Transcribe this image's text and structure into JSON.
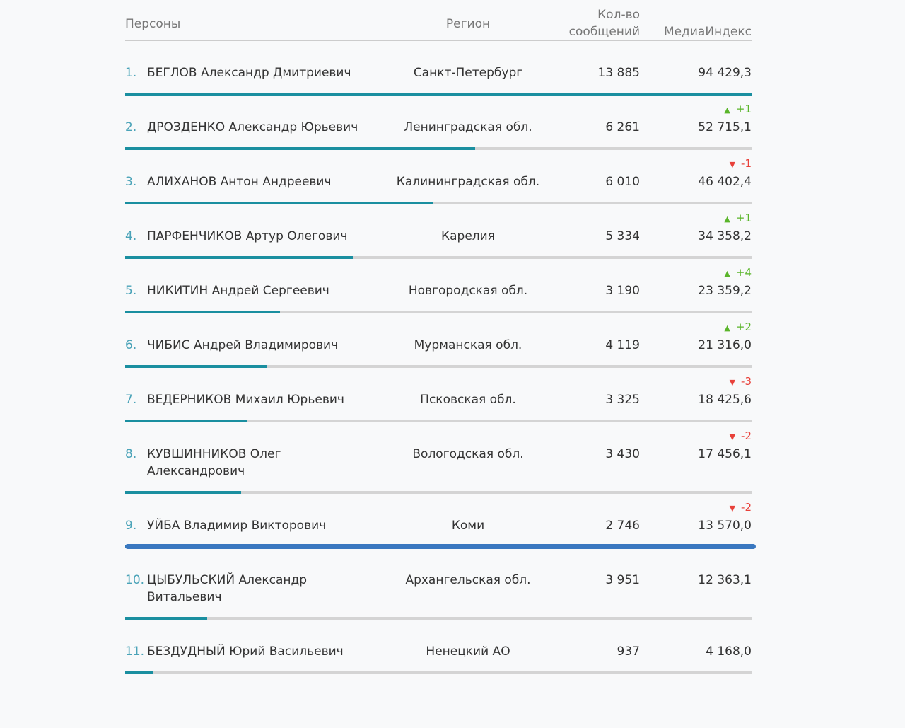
{
  "table": {
    "header": [
      "Персоны",
      "Регион",
      "Кол-во сообщений",
      "МедиаИндекс"
    ],
    "rows": [
      {
        "rank": "1.",
        "name": "БЕГЛОВ Александр Дмитриевич",
        "region": "Санкт-Петербург",
        "count": "13 885",
        "index": {
          "value": 94429.3,
          "label": "94 429,3"
        }
      },
      {
        "rank": "2.",
        "name": "ДРОЗДЕНКО Александр Юрьевич",
        "region": "Ленинградская обл.",
        "count": "6 261",
        "index": {
          "value": 52715.1,
          "label": "52 715,1"
        },
        "change": "+1"
      },
      {
        "rank": "3.",
        "name": "АЛИХАНОВ Антон Андреевич",
        "region": "Калининградская обл.",
        "count": "6 010",
        "index": {
          "value": 46402.4,
          "label": "46 402,4"
        },
        "change": "-1"
      },
      {
        "rank": "4.",
        "name": "ПАРФЕНЧИКОВ Артур Олегович",
        "region": "Карелия",
        "count": "5 334",
        "index": {
          "value": 34358.2,
          "label": "34 358,2"
        },
        "change": "+1"
      },
      {
        "rank": "5.",
        "name": "НИКИТИН Андрей Сергеевич",
        "region": "Новгородская обл.",
        "count": "3 190",
        "index": {
          "value": 23359.2,
          "label": "23 359,2"
        },
        "change": "+4"
      },
      {
        "rank": "6.",
        "name": "ЧИБИС Андрей Владимирович",
        "region": "Мурманская обл.",
        "count": "4 119",
        "index": {
          "value": 21316.0,
          "label": "21 316,0"
        },
        "change": "+2"
      },
      {
        "rank": "7.",
        "name": "ВЕДЕРНИКОВ Михаил Юрьевич",
        "region": "Псковская обл.",
        "count": "3 325",
        "index": {
          "value": 18425.6,
          "label": "18 425,6"
        },
        "change": "-3"
      },
      {
        "rank": "8.",
        "name": "КУВШИННИКОВ Олег Александрович",
        "region": "Вологодская обл.",
        "count": "3 430",
        "index": {
          "value": 17456.1,
          "label": "17 456,1"
        },
        "change": "-2"
      },
      {
        "rank": "9.",
        "name": "УЙБА Владимир Викторович",
        "region": "Коми",
        "count": "2 746",
        "index": {
          "value": 13570.0,
          "label": "13 570,0"
        },
        "change": "-2",
        "highlighted": true
      },
      {
        "rank": "10.",
        "name": "ЦЫБУЛЬСКИЙ Александр Витальевич",
        "region": "Архангельская обл.",
        "count": "3 951",
        "index": {
          "value": 12363.1,
          "label": "12 363,1"
        }
      },
      {
        "rank": "11.",
        "name": "БЕЗДУДНЫЙ Юрий Васильевич",
        "region": "Ненецкий АО",
        "count": "937",
        "index": {
          "value": 4168.0,
          "label": "4 168,0"
        }
      }
    ]
  }
}
